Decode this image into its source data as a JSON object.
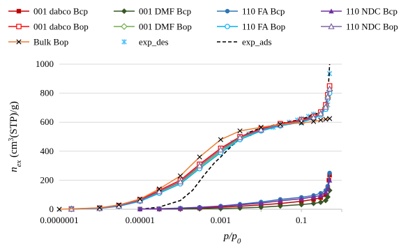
{
  "chart_data": {
    "type": "scatter",
    "title": "",
    "xlabel": "p/p0",
    "xlabel_main": "p/p",
    "xlabel_sub": "0",
    "ylabel": "nex (cm3(STP)/g)",
    "ylabel_parts": {
      "n": "n",
      "sub": "ex",
      "open": " (cm",
      "sup": "3",
      "close": "(STP)/g)"
    },
    "x_scale": "log",
    "xlim": [
      1e-07,
      1
    ],
    "ylim": [
      0,
      1000
    ],
    "x_tick_labels": [
      "0.0000001",
      "0.00001",
      "0.001",
      "0.1"
    ],
    "x_tick_values": [
      1e-07,
      1e-05,
      0.001,
      0.1
    ],
    "y_ticks": [
      0,
      200,
      400,
      600,
      800,
      1000
    ],
    "y_tick_labels": [
      "0",
      "200",
      "400",
      "600",
      "800",
      "1000"
    ],
    "grid": "horizontal",
    "legend_position": "top",
    "series": [
      {
        "name": "001 dabco Bcp",
        "color": "#c00000",
        "marker": "square-filled",
        "x": [
          1e-05,
          3e-05,
          0.0001,
          0.0003,
          0.001,
          0.003,
          0.01,
          0.03,
          0.1,
          0.2,
          0.3,
          0.4,
          0.45,
          0.48,
          0.5
        ],
        "y": [
          1,
          2,
          4,
          8,
          14,
          20,
          30,
          40,
          55,
          68,
          80,
          100,
          150,
          200,
          235
        ]
      },
      {
        "name": "001 DMF Bcp",
        "color": "#375623",
        "marker": "diamond-filled",
        "x": [
          3e-05,
          0.0001,
          0.0003,
          0.001,
          0.003,
          0.01,
          0.03,
          0.1,
          0.2,
          0.3,
          0.4,
          0.45,
          0.5
        ],
        "y": [
          1,
          2,
          3,
          5,
          8,
          14,
          22,
          32,
          40,
          48,
          60,
          85,
          130
        ]
      },
      {
        "name": "110 FA Bcp",
        "color": "#2e75b6",
        "marker": "circle-filled",
        "x": [
          1e-05,
          3e-05,
          0.0001,
          0.0003,
          0.001,
          0.003,
          0.01,
          0.03,
          0.1,
          0.2,
          0.3,
          0.4,
          0.45,
          0.5
        ],
        "y": [
          2,
          4,
          8,
          14,
          22,
          35,
          50,
          68,
          82,
          95,
          110,
          130,
          160,
          250
        ]
      },
      {
        "name": "110 NDC Bcp",
        "color": "#7030a0",
        "marker": "triangle-filled",
        "x": [
          1e-05,
          3e-05,
          0.0001,
          0.0003,
          0.001,
          0.003,
          0.01,
          0.03,
          0.1,
          0.2,
          0.3,
          0.4,
          0.45,
          0.5
        ],
        "y": [
          1,
          3,
          6,
          12,
          20,
          30,
          42,
          58,
          72,
          85,
          95,
          115,
          140,
          200
        ]
      },
      {
        "name": "001 dabco Bop",
        "color": "#ff0000",
        "marker": "square-open",
        "x": [
          2e-07,
          1e-06,
          3e-06,
          1e-05,
          3e-05,
          0.0001,
          0.0003,
          0.001,
          0.003,
          0.01,
          0.03,
          0.1,
          0.2,
          0.3,
          0.4,
          0.45,
          0.5
        ],
        "y": [
          2,
          8,
          25,
          65,
          130,
          200,
          310,
          420,
          500,
          555,
          590,
          615,
          640,
          670,
          720,
          790,
          850
        ]
      },
      {
        "name": "001 DMF Bop",
        "color": "#70ad47",
        "marker": "diamond-open",
        "x": [
          2e-07,
          1e-06,
          3e-06,
          1e-05,
          3e-05,
          0.0001,
          0.0003,
          0.001,
          0.003,
          0.01,
          0.03,
          0.1,
          0.2,
          0.3,
          0.4,
          0.45,
          0.5
        ],
        "y": [
          2,
          7,
          22,
          58,
          118,
          185,
          290,
          400,
          490,
          545,
          580,
          605,
          630,
          655,
          700,
          770,
          820
        ]
      },
      {
        "name": "110 FA Bop",
        "color": "#00b0f0",
        "marker": "circle-open",
        "x": [
          2e-07,
          1e-06,
          3e-06,
          1e-05,
          3e-05,
          0.0001,
          0.0003,
          0.001,
          0.003,
          0.01,
          0.03,
          0.1,
          0.2,
          0.3,
          0.4,
          0.45,
          0.5
        ],
        "y": [
          2,
          6,
          20,
          55,
          110,
          175,
          280,
          390,
          480,
          540,
          575,
          600,
          625,
          650,
          690,
          760,
          800
        ]
      },
      {
        "name": "110 NDC Bop",
        "color": "#8064a2",
        "marker": "triangle-open",
        "x": [
          2e-07,
          1e-06,
          3e-06,
          1e-05,
          3e-05,
          0.0001,
          0.0003,
          0.001,
          0.003,
          0.01,
          0.03,
          0.1,
          0.2,
          0.3,
          0.4,
          0.45,
          0.5
        ],
        "y": [
          2,
          7,
          23,
          60,
          122,
          190,
          300,
          410,
          495,
          548,
          582,
          608,
          632,
          660,
          705,
          775,
          830
        ]
      },
      {
        "name": "Bulk Bop",
        "color": "#ed7d31",
        "marker": "x",
        "x": [
          1e-07,
          1e-06,
          3e-06,
          1e-05,
          3e-05,
          0.0001,
          0.0003,
          0.001,
          0.003,
          0.01,
          0.03,
          0.1,
          0.2,
          0.3,
          0.4,
          0.5
        ],
        "y": [
          0,
          10,
          30,
          70,
          140,
          230,
          360,
          480,
          540,
          565,
          585,
          595,
          605,
          615,
          620,
          625
        ]
      },
      {
        "name": "exp_des",
        "color": "#4fc3f7",
        "marker": "star",
        "line": "none",
        "x": [
          0.001,
          0.0015,
          0.002,
          0.003,
          0.005,
          0.01,
          0.02,
          0.03,
          0.05,
          0.08,
          0.1,
          0.15,
          0.2,
          0.3,
          0.4,
          0.45,
          0.5
        ],
        "y": [
          400,
          430,
          460,
          490,
          520,
          545,
          565,
          580,
          600,
          615,
          625,
          640,
          655,
          670,
          690,
          720,
          935
        ]
      },
      {
        "name": "exp_ads",
        "color": "#000000",
        "marker": "none",
        "line": "dashed",
        "x": [
          1e-05,
          3e-05,
          0.0001,
          0.0002,
          0.0004,
          0.0007,
          0.001,
          0.0015,
          0.0025,
          0.005,
          0.01,
          0.03,
          0.1,
          0.3,
          0.45,
          0.5
        ],
        "y": [
          0,
          15,
          60,
          130,
          240,
          320,
          360,
          410,
          470,
          530,
          560,
          590,
          620,
          670,
          760,
          1000
        ]
      }
    ]
  }
}
